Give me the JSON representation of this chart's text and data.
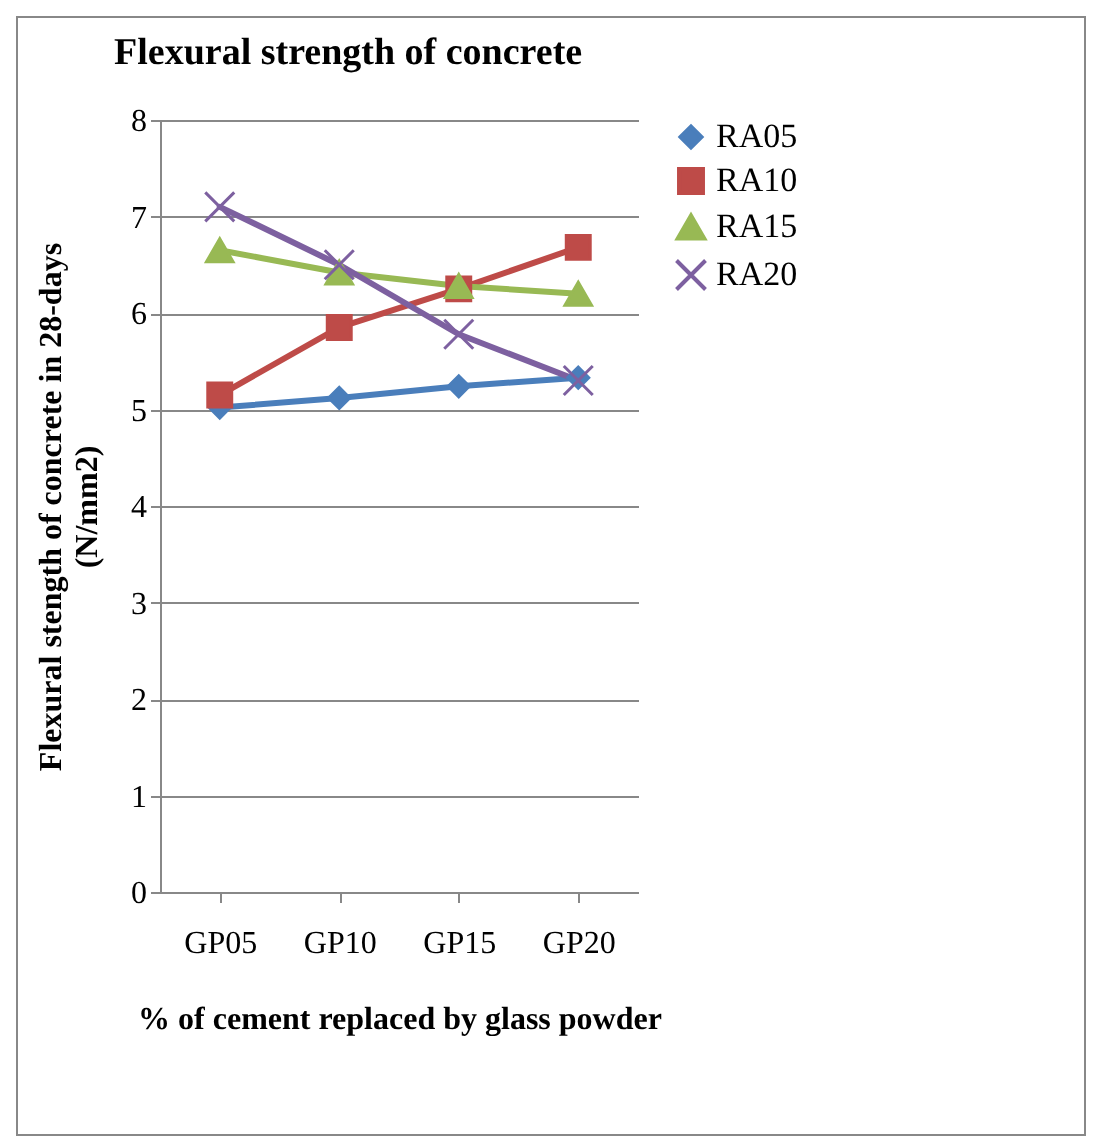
{
  "chart_data": {
    "type": "line",
    "title": "Flexural strength of concrete",
    "xlabel": "% of cement replaced by glass powder",
    "ylabel": "Flexural stength of concrete in  28-days\n(N/mm2)",
    "categories": [
      "GP05",
      "GP10",
      "GP15",
      "GP20"
    ],
    "series": [
      {
        "name": "RA05",
        "color": "#4a7ebb",
        "marker": "diamond",
        "values": [
          5.02,
          5.12,
          5.24,
          5.33
        ]
      },
      {
        "name": "RA10",
        "color": "#be4b48",
        "marker": "square",
        "values": [
          5.15,
          5.85,
          6.25,
          6.68
        ]
      },
      {
        "name": "RA15",
        "color": "#98b954",
        "marker": "triangle",
        "values": [
          6.65,
          6.42,
          6.28,
          6.2
        ]
      },
      {
        "name": "RA20",
        "color": "#7d60a0",
        "marker": "cross",
        "values": [
          7.1,
          6.5,
          5.78,
          5.3
        ]
      }
    ],
    "ylim": [
      0,
      8
    ],
    "yticks": [
      0,
      1,
      2,
      3,
      4,
      5,
      6,
      7,
      8
    ],
    "grid": "y",
    "legend": "right",
    "line_style": "solid"
  }
}
